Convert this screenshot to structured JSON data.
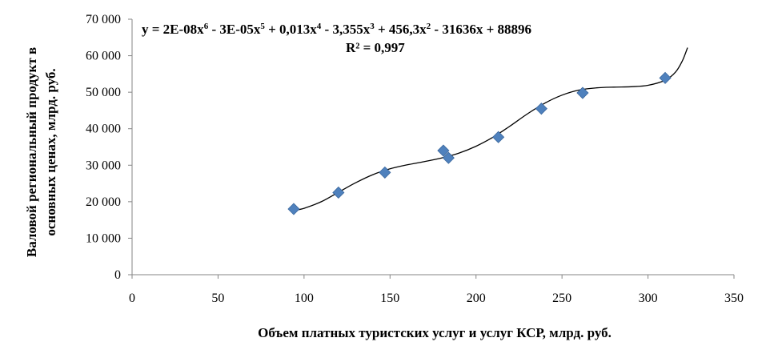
{
  "chart_data": {
    "type": "scatter",
    "title": "",
    "xlabel": "Объем платных туристских услуг и услуг КСР, млрд. руб.",
    "ylabel_line1": "Валовой региональный продукт в",
    "ylabel_line2": "основных ценах, млрд. руб.",
    "xlim": [
      0,
      350
    ],
    "ylim": [
      0,
      70000
    ],
    "x_ticks": [
      0,
      50,
      100,
      150,
      200,
      250,
      300,
      350
    ],
    "x_tick_labels": [
      "0",
      "50",
      "100",
      "150",
      "200",
      "250",
      "300",
      "350"
    ],
    "y_ticks": [
      0,
      10000,
      20000,
      30000,
      40000,
      50000,
      60000,
      70000
    ],
    "y_tick_labels": [
      "0",
      "10 000",
      "20 000",
      "30 000",
      "40 000",
      "50 000",
      "60 000",
      "70 000"
    ],
    "grid": false,
    "legend": "none",
    "marker_color": "#4f81bd",
    "trend_color": "#000000",
    "points": [
      {
        "x": 94,
        "y": 18000
      },
      {
        "x": 120,
        "y": 22500
      },
      {
        "x": 147,
        "y": 28000
      },
      {
        "x": 181,
        "y": 34000
      },
      {
        "x": 184,
        "y": 32000
      },
      {
        "x": 213,
        "y": 37700
      },
      {
        "x": 238,
        "y": 45500
      },
      {
        "x": 262,
        "y": 49800
      },
      {
        "x": 310,
        "y": 53900
      }
    ],
    "trendline": {
      "type": "polynomial",
      "order": 6,
      "x_range": [
        94,
        323
      ],
      "curve": [
        {
          "x": 94,
          "y": 17600
        },
        {
          "x": 100,
          "y": 18200
        },
        {
          "x": 110,
          "y": 20000
        },
        {
          "x": 120,
          "y": 22600
        },
        {
          "x": 130,
          "y": 25200
        },
        {
          "x": 140,
          "y": 27400
        },
        {
          "x": 150,
          "y": 29000
        },
        {
          "x": 160,
          "y": 30100
        },
        {
          "x": 170,
          "y": 31000
        },
        {
          "x": 180,
          "y": 32000
        },
        {
          "x": 190,
          "y": 33300
        },
        {
          "x": 200,
          "y": 35200
        },
        {
          "x": 210,
          "y": 37700
        },
        {
          "x": 220,
          "y": 40800
        },
        {
          "x": 230,
          "y": 44100
        },
        {
          "x": 240,
          "y": 47000
        },
        {
          "x": 250,
          "y": 49200
        },
        {
          "x": 260,
          "y": 50600
        },
        {
          "x": 270,
          "y": 51200
        },
        {
          "x": 280,
          "y": 51400
        },
        {
          "x": 290,
          "y": 51500
        },
        {
          "x": 300,
          "y": 51900
        },
        {
          "x": 310,
          "y": 53300
        },
        {
          "x": 316,
          "y": 55500
        },
        {
          "x": 320,
          "y": 58600
        },
        {
          "x": 323,
          "y": 62200
        }
      ]
    },
    "equation": {
      "prefix": "y = 2E-08x",
      "p1": "6",
      "t2": " - 3E-05x",
      "p2": "5",
      "t3": " + 0,013x",
      "p3": "4",
      "t4": " - 3,355x",
      "p4": "3",
      "t5": " + 456,3x",
      "p5": "2",
      "t6": " - 31636x + 88896"
    },
    "r_squared": "R² = 0,997"
  }
}
